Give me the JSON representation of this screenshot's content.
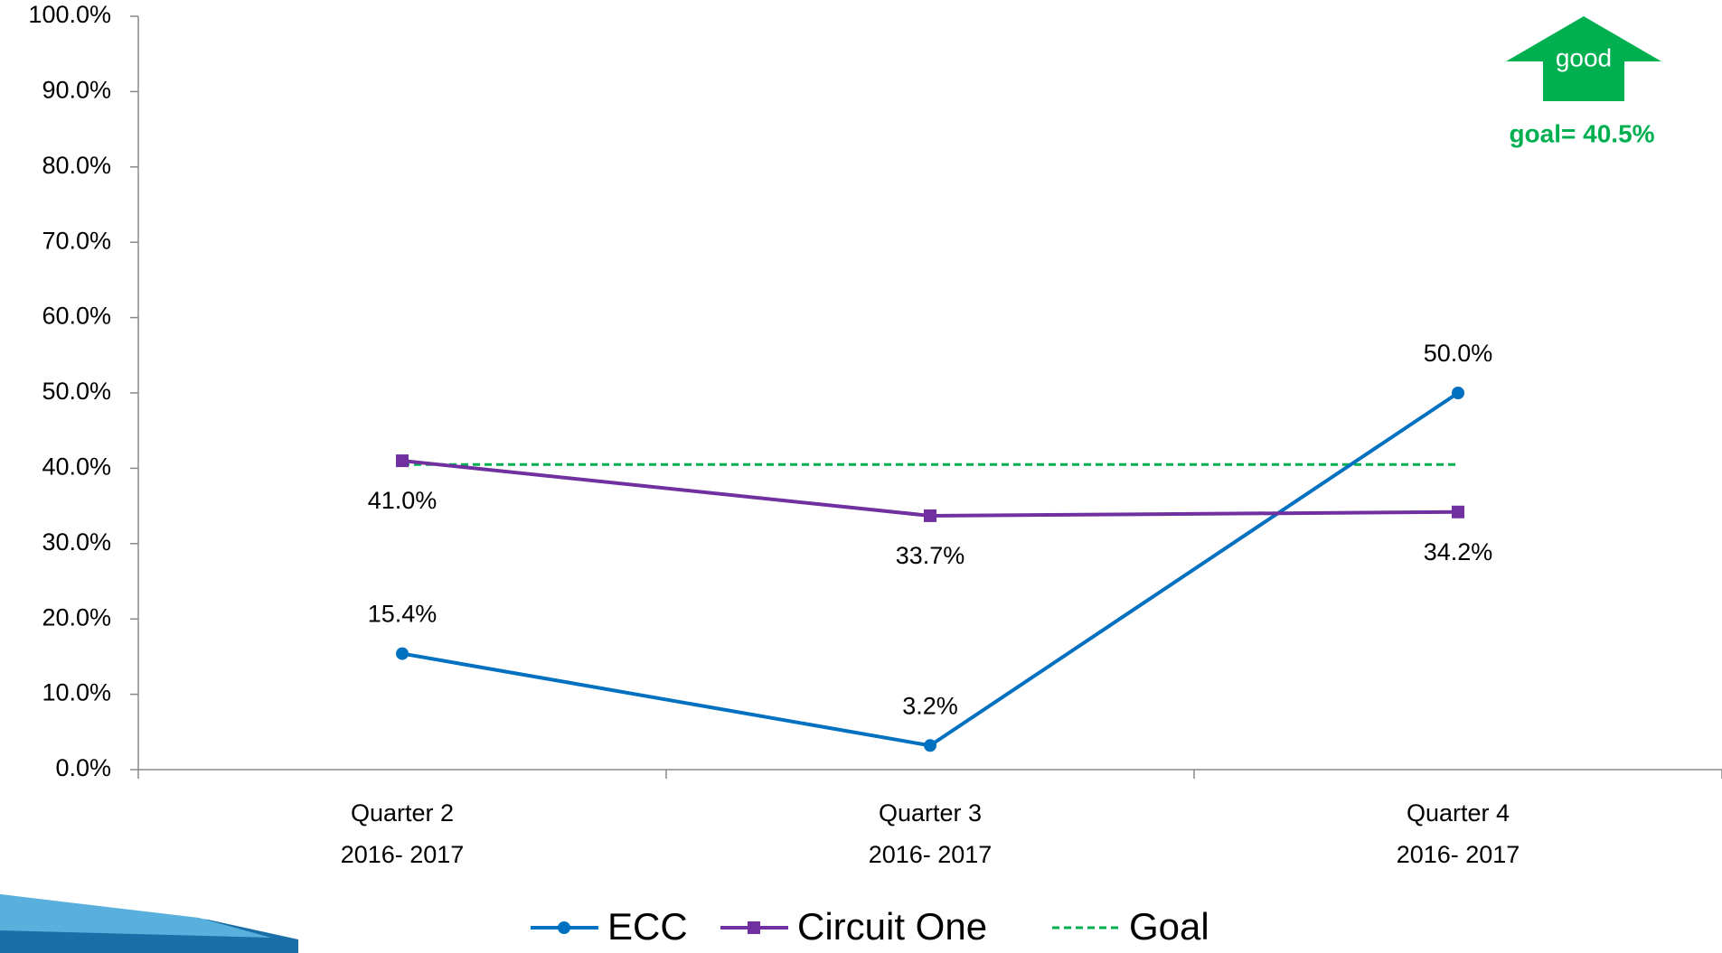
{
  "chart_data": {
    "type": "line",
    "categories": [
      [
        "Quarter 2",
        "2016- 2017"
      ],
      [
        "Quarter 3",
        "2016- 2017"
      ],
      [
        "Quarter 4",
        "2016- 2017"
      ]
    ],
    "ylim": [
      0,
      100
    ],
    "yticks": [
      {
        "value": 0,
        "label": "0.0%"
      },
      {
        "value": 10,
        "label": "10.0%"
      },
      {
        "value": 20,
        "label": "20.0%"
      },
      {
        "value": 30,
        "label": "30.0%"
      },
      {
        "value": 40,
        "label": "40.0%"
      },
      {
        "value": 50,
        "label": "50.0%"
      },
      {
        "value": 60,
        "label": "60.0%"
      },
      {
        "value": 70,
        "label": "70.0%"
      },
      {
        "value": 80,
        "label": "80.0%"
      },
      {
        "value": 90,
        "label": "90.0%"
      },
      {
        "value": 100,
        "label": "100.0%"
      }
    ],
    "grid": false,
    "series": [
      {
        "name": "ECC",
        "color": "#0070c0",
        "marker": "circle",
        "line": "solid",
        "label_side": "above",
        "values": [
          15.4,
          3.2,
          50.0
        ],
        "value_labels": [
          "15.4%",
          "3.2%",
          "50.0%"
        ]
      },
      {
        "name": "Circuit One",
        "color": "#7030a0",
        "marker": "square",
        "line": "solid",
        "label_side": "below",
        "values": [
          41.0,
          33.7,
          34.2
        ],
        "value_labels": [
          "41.0%",
          "33.7%",
          "34.2%"
        ]
      },
      {
        "name": "Goal",
        "color": "#00b050",
        "marker": "none",
        "line": "dashed",
        "values": [
          40.5,
          40.5,
          40.5
        ]
      }
    ],
    "legend": "bottom",
    "annotations": {
      "arrow": "good",
      "goal": "goal= 40.5%"
    }
  }
}
